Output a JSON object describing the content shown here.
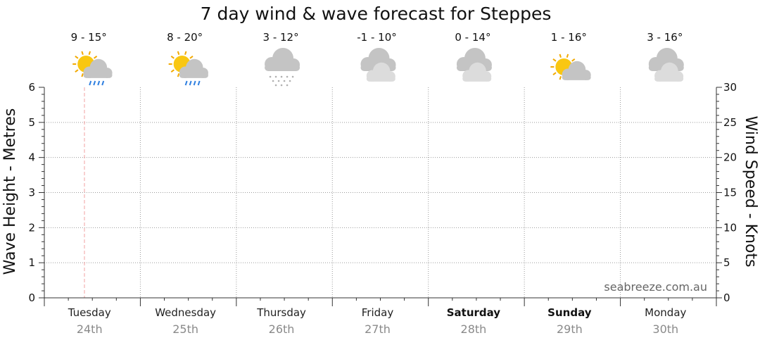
{
  "chart_data": {
    "type": "line",
    "title": "7 day wind & wave forecast for Steppes",
    "ylabel_left": "Wave Height - Metres",
    "ylabel_right": "Wind Speed - Knots",
    "ylim_left": [
      0,
      6
    ],
    "ylim_right": [
      0,
      30
    ],
    "yticks_left": [
      "0",
      "1",
      "2",
      "3",
      "4",
      "5",
      "6"
    ],
    "yticks_right": [
      "0",
      "5",
      "10",
      "15",
      "20",
      "25",
      "30"
    ],
    "grid": true,
    "days": [
      {
        "name": "Tuesday",
        "date": "24th",
        "temp": "9 - 15°",
        "icon": "sun-cloud-rain-icon",
        "bold": false
      },
      {
        "name": "Wednesday",
        "date": "25th",
        "temp": "8 - 20°",
        "icon": "sun-cloud-rain-icon",
        "bold": false
      },
      {
        "name": "Thursday",
        "date": "26th",
        "temp": "3 - 12°",
        "icon": "cloud-snow-icon",
        "bold": false
      },
      {
        "name": "Friday",
        "date": "27th",
        "temp": "-1 - 10°",
        "icon": "cloudy-icon",
        "bold": false
      },
      {
        "name": "Saturday",
        "date": "28th",
        "temp": "0 - 14°",
        "icon": "cloudy-icon",
        "bold": true
      },
      {
        "name": "Sunday",
        "date": "29th",
        "temp": "1 - 16°",
        "icon": "sun-cloud-icon",
        "bold": true
      },
      {
        "name": "Monday",
        "date": "30th",
        "temp": "3 - 16°",
        "icon": "cloudy-icon",
        "bold": false
      }
    ],
    "series": [],
    "watermark": "seabreeze.com.au"
  },
  "colors": {
    "sun": "#f9c712",
    "sun_rays": "#f2a900",
    "cloud": "#c4c4c4",
    "cloud_light": "#dcdcdc",
    "rain": "#2f7fe0",
    "now_line": "#f0a0a0",
    "grid": "#9a9a9a"
  }
}
